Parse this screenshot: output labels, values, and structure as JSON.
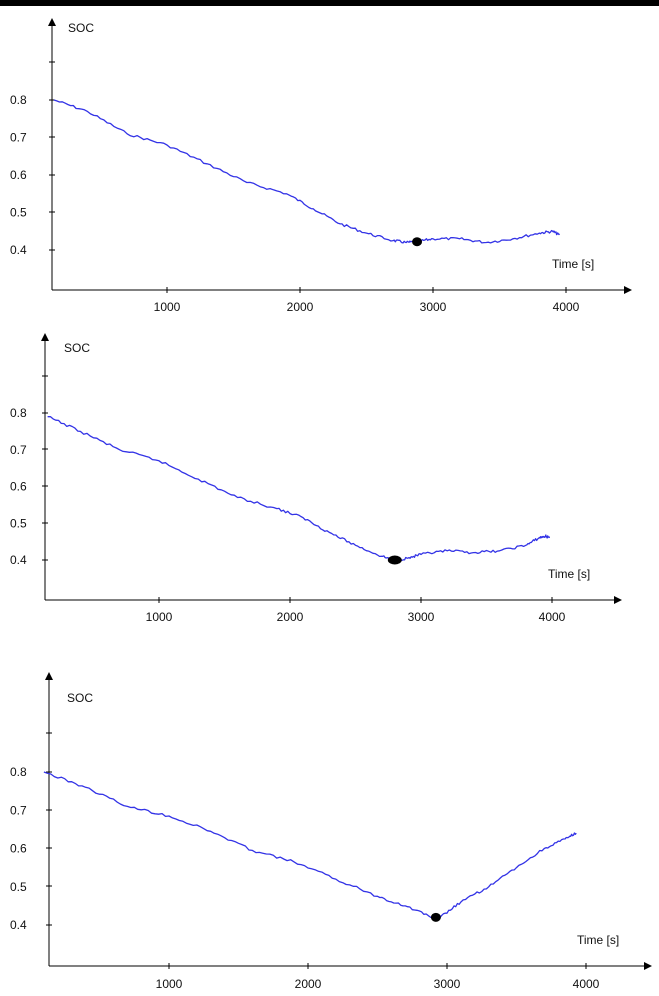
{
  "colors": {
    "line": "#3333e6",
    "marker": "#000000",
    "axis": "#000000",
    "top_bar": "#000000"
  },
  "chart_data": [
    {
      "type": "line",
      "title": "",
      "xlabel": "Time [s]",
      "ylabel": "SOC",
      "xticks": [
        "1000",
        "2000",
        "3000",
        "4000"
      ],
      "yticks": [
        "0.4",
        "0.5",
        "0.6",
        "0.7",
        "0.8"
      ],
      "xlim": [
        150,
        4450
      ],
      "ylim": [
        0.35,
        0.95
      ],
      "grid": false,
      "series": [
        {
          "x": [
            150,
            400,
            700,
            1000,
            1300,
            1600,
            1900,
            2100,
            2300,
            2500,
            2700,
            2800,
            2880,
            3000,
            3200,
            3400,
            3600,
            3800,
            3900,
            3950
          ],
          "y": [
            0.8,
            0.77,
            0.71,
            0.68,
            0.63,
            0.58,
            0.55,
            0.51,
            0.47,
            0.445,
            0.425,
            0.42,
            0.422,
            0.43,
            0.43,
            0.42,
            0.43,
            0.445,
            0.45,
            0.44
          ]
        }
      ],
      "marker": {
        "x": 2880,
        "y": 0.422
      }
    },
    {
      "type": "line",
      "title": "",
      "xlabel": "Time [s]",
      "ylabel": "SOC",
      "xticks": [
        "1000",
        "2000",
        "3000",
        "4000"
      ],
      "yticks": [
        "0.4",
        "0.5",
        "0.6",
        "0.7",
        "0.8"
      ],
      "xlim": [
        130,
        4500
      ],
      "ylim": [
        0.35,
        0.95
      ],
      "grid": false,
      "series": [
        {
          "x": [
            150,
            400,
            700,
            1000,
            1300,
            1600,
            1900,
            2100,
            2300,
            2500,
            2700,
            2800,
            2900,
            3000,
            3200,
            3400,
            3600,
            3800,
            3900,
            3950,
            3980
          ],
          "y": [
            0.79,
            0.75,
            0.7,
            0.67,
            0.62,
            0.57,
            0.54,
            0.515,
            0.475,
            0.44,
            0.41,
            0.4,
            0.405,
            0.415,
            0.425,
            0.42,
            0.425,
            0.44,
            0.46,
            0.465,
            0.46
          ]
        }
      ],
      "marker": {
        "x": 2800,
        "y": 0.4
      }
    },
    {
      "type": "line",
      "title": "",
      "xlabel": "Time [s]",
      "ylabel": "SOC",
      "xticks": [
        "1000",
        "2000",
        "3000",
        "4000"
      ],
      "yticks": [
        "0.4",
        "0.5",
        "0.6",
        "0.7",
        "0.8"
      ],
      "xlim": [
        100,
        4620
      ],
      "ylim": [
        0.35,
        0.95
      ],
      "grid": false,
      "series": [
        {
          "x": [
            100,
            400,
            700,
            1000,
            1300,
            1600,
            1900,
            2200,
            2500,
            2700,
            2900,
            2950,
            3100,
            3300,
            3500,
            3700,
            3850,
            3930
          ],
          "y": [
            0.8,
            0.76,
            0.71,
            0.685,
            0.645,
            0.595,
            0.565,
            0.52,
            0.475,
            0.45,
            0.42,
            0.42,
            0.46,
            0.5,
            0.55,
            0.6,
            0.625,
            0.64
          ]
        }
      ],
      "marker": {
        "x": 2920,
        "y": 0.42
      }
    }
  ]
}
